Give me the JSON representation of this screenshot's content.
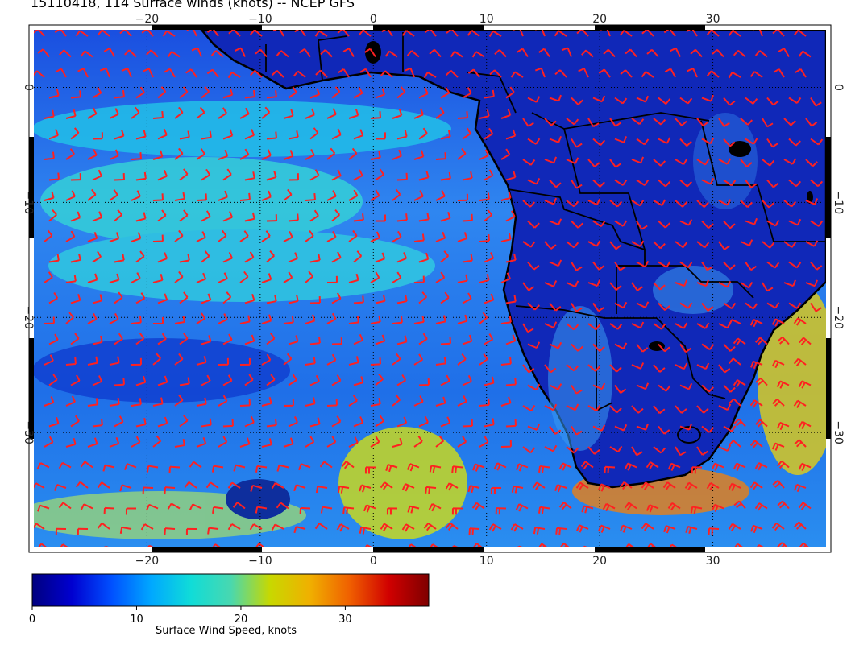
{
  "title": "15110418, 114 Surface winds (knots) -- NCEP GFS",
  "colorbar": {
    "label": "Surface Wind Speed, knots",
    "ticks": [
      "0",
      "10",
      "20",
      "30"
    ],
    "min": 0,
    "max": 38,
    "colors": [
      "#00007f",
      "#0000d0",
      "#0050ff",
      "#00a8ff",
      "#10dcd8",
      "#48d8b0",
      "#c8d800",
      "#f0b000",
      "#f06000",
      "#d00000",
      "#7f0000"
    ]
  },
  "map": {
    "lon_range": [
      -30,
      40
    ],
    "lat_range": [
      -40,
      5
    ],
    "lon_ticks": [
      "-20",
      "-10",
      "0",
      "10",
      "20",
      "30"
    ],
    "lat_ticks": [
      "0",
      "-10",
      "-20",
      "-30"
    ],
    "grid": "dotted",
    "barb_color": "#ff2020",
    "coast_color": "#000000"
  }
}
